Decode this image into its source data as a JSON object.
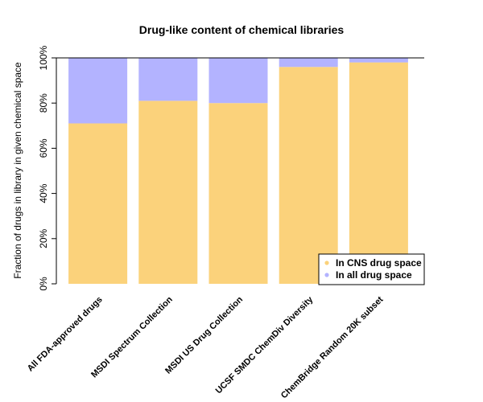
{
  "chart_data": {
    "type": "bar",
    "stacked": true,
    "title": "Drug-like content of chemical libraries",
    "xlabel": "",
    "ylabel": "Fraction of drugs in library in given chemical space",
    "ylim": [
      0,
      100
    ],
    "yticks": [
      0,
      20,
      40,
      60,
      80,
      100
    ],
    "ytick_suffix": "%",
    "categories": [
      "All FDA-approved drugs",
      "MSDI Spectrum Collection",
      "MSDI US Drug Collection",
      "UCSF SMDC ChemDiv Diversity",
      "ChemBridge Random 20K subset"
    ],
    "series": [
      {
        "name": "In CNS drug space",
        "color": "#fbd27b",
        "values": [
          71,
          81,
          80,
          96,
          98
        ]
      },
      {
        "name": "In all drug space",
        "color": "#b3b3ff",
        "values": [
          29,
          19,
          20,
          4,
          2
        ]
      }
    ],
    "legend": {
      "position": "bottom-right"
    },
    "grid": false
  }
}
